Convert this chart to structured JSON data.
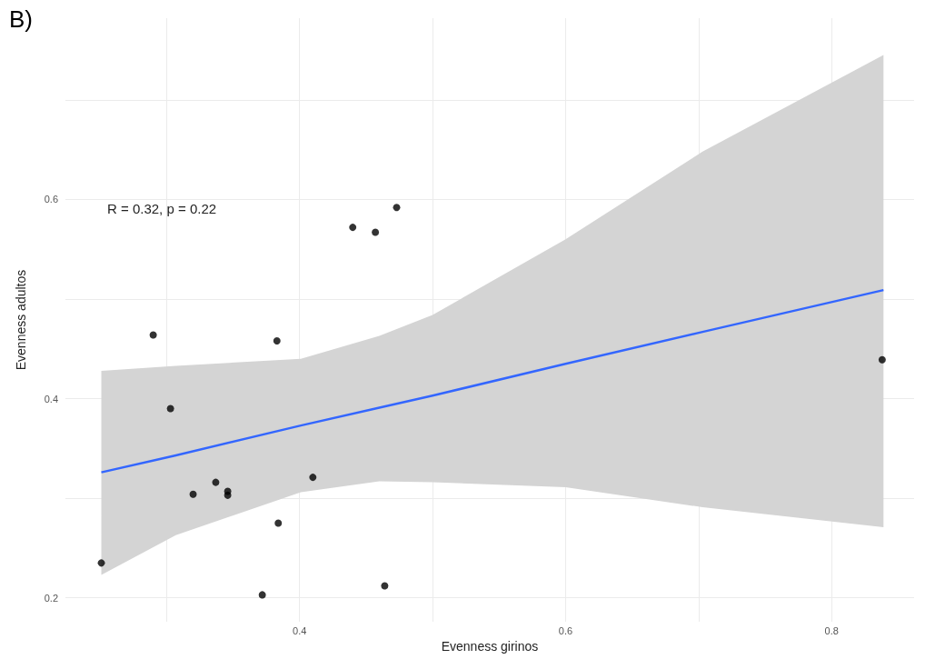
{
  "chart_data": {
    "type": "scatter",
    "title": "B)",
    "xlabel": "Evenness girinos",
    "ylabel": "Evenness adultos",
    "annotations": [
      "R = 0.32, p = 0.22"
    ],
    "xlim": [
      0.224,
      0.862
    ],
    "ylim": [
      0.176,
      0.782
    ],
    "xticks": [
      {
        "value": 0.3,
        "label": null
      },
      0.4,
      {
        "value": 0.5,
        "label": null
      },
      0.6,
      {
        "value": 0.7,
        "label": null
      },
      0.8
    ],
    "yticks": [
      0.2,
      {
        "value": 0.3,
        "label": null
      },
      0.4,
      {
        "value": 0.5,
        "label": null
      },
      0.6,
      {
        "value": 0.7,
        "label": null
      }
    ],
    "grid": true,
    "marker": "circle",
    "series": [
      {
        "color": "#000000",
        "x": [
          0.251,
          0.29,
          0.303,
          0.32,
          0.337,
          0.346,
          0.346,
          0.372,
          0.383,
          0.384,
          0.41,
          0.44,
          0.457,
          0.464,
          0.473,
          0.838
        ],
        "values": [
          0.235,
          0.464,
          0.39,
          0.304,
          0.316,
          0.307,
          0.303,
          0.203,
          0.458,
          0.275,
          0.321,
          0.572,
          0.567,
          0.212,
          0.592,
          0.439
        ]
      },
      {
        "type": "line",
        "color": "#3366ff",
        "line_style": "solid",
        "marker": "none",
        "x": [
          0.251,
          0.307,
          0.401,
          0.46,
          0.5,
          0.6,
          0.703,
          0.839
        ],
        "values": [
          0.326,
          0.343,
          0.373,
          0.391,
          0.403,
          0.435,
          0.467,
          0.509
        ],
        "lower": [
          0.223,
          0.263,
          0.306,
          0.317,
          0.316,
          0.311,
          0.291,
          0.271
        ],
        "upper": [
          0.428,
          0.433,
          0.44,
          0.463,
          0.484,
          0.56,
          0.648,
          0.745
        ]
      }
    ]
  }
}
